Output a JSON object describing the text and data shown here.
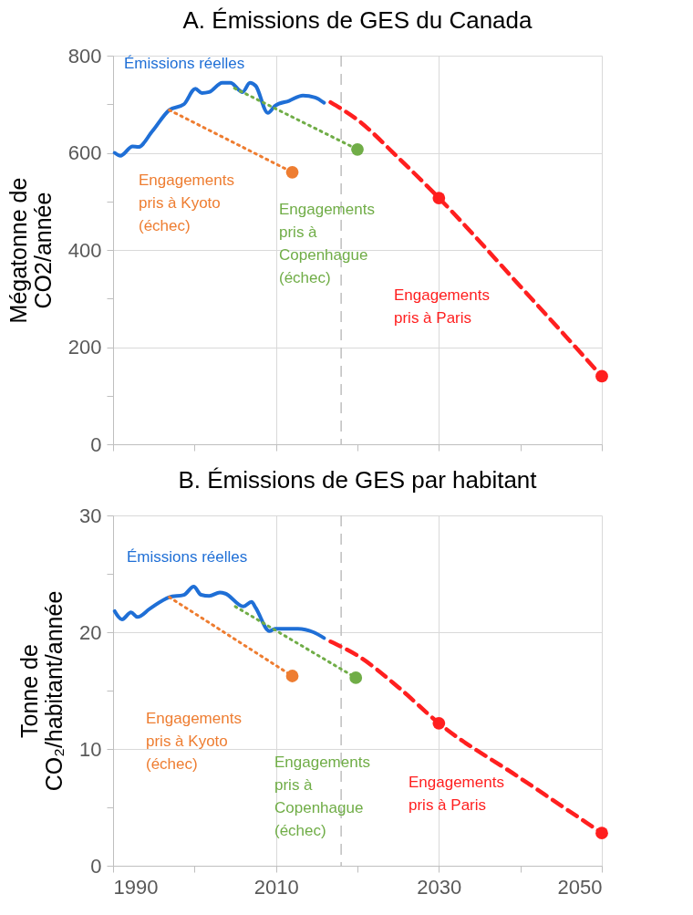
{
  "chart_data": [
    {
      "type": "line",
      "title": "A. Émissions de GES du Canada",
      "ylabel": "Mégatonne de\nCO2/année",
      "xlim": [
        1990,
        2050
      ],
      "xticks": [
        1990,
        {
          "value": 2000,
          "label": null
        },
        2010,
        {
          "value": 2020,
          "label": null
        },
        2030,
        {
          "value": 2040,
          "label": null
        },
        2050
      ],
      "ylim": [
        0,
        800
      ],
      "yticks": [
        0,
        {
          "value": 100,
          "label": null
        },
        200,
        {
          "value": 300,
          "label": null
        },
        400,
        {
          "value": 500,
          "label": null
        },
        600,
        {
          "value": 700,
          "label": null
        },
        800
      ],
      "grid": true,
      "tick_labels": "y",
      "series": [
        {
          "type": "line",
          "color": "#1f6fd6",
          "x": [
            1990.2,
            1990.9,
            1992.4,
            1993.1,
            1994.8,
            1996.9,
            1998.7,
            2000.1,
            2000.9,
            2001.8,
            2003.4,
            2004.4,
            2005.9,
            2006.8,
            2007.5,
            2009.0,
            2009.9,
            2011.6,
            2013.3,
            2014.8,
            2015.9
          ],
          "values": [
            600,
            594,
            613,
            612,
            644,
            688,
            700,
            732,
            723,
            725,
            744,
            744,
            725,
            744,
            738,
            682,
            697,
            707,
            718,
            714,
            703
          ]
        },
        {
          "type": "line",
          "color": "#ff1f1f",
          "line_style": "dashed",
          "x": [
            2016.7,
            2020,
            2025,
            2030,
            2040,
            2050
          ],
          "values": [
            704,
            668,
            590,
            507,
            325,
            140
          ]
        },
        {
          "type": "line",
          "color": "#ee7d31",
          "line_style": "dotted",
          "x": [
            1996.9,
            2012
          ],
          "values": [
            688,
            560
          ]
        },
        {
          "type": "line",
          "color": "#70ad47",
          "line_style": "dotted",
          "x": [
            2004.9,
            2020
          ],
          "values": [
            733,
            607
          ]
        },
        {
          "type": "scatter",
          "color": "#ee7d31",
          "marker": "circle",
          "x": [
            2012
          ],
          "values": [
            560
          ]
        },
        {
          "type": "scatter",
          "color": "#70ad47",
          "marker": "circle",
          "x": [
            2020
          ],
          "values": [
            607
          ]
        },
        {
          "type": "scatter",
          "color": "#ff1f1f",
          "marker": "circle",
          "x": [
            2030,
            2050
          ],
          "values": [
            507,
            140
          ]
        }
      ],
      "ref_lines": [
        {
          "axis": "x",
          "value": 2018,
          "color": "#bfbfbf",
          "line_style": "dashed"
        }
      ],
      "annotations": [
        "Émissions réelles",
        "Engagements\npris à Kyoto\n(échec)",
        "Engagements\npris à\nCopenhague\n(échec)",
        "Engagements\npris à Paris"
      ]
    },
    {
      "type": "line",
      "title": "B. Émissions de GES par habitant",
      "ylabel": "Tonne de\nCO₂/habitant/année",
      "xlim": [
        1990,
        2050
      ],
      "xticks": [
        1990,
        {
          "value": 2000,
          "label": null
        },
        2010,
        {
          "value": 2020,
          "label": null
        },
        2030,
        {
          "value": 2040,
          "label": null
        },
        2050
      ],
      "ylim": [
        0,
        30
      ],
      "yticks": [
        0,
        {
          "value": 5,
          "label": null
        },
        10,
        {
          "value": 15,
          "label": null
        },
        20,
        {
          "value": 25,
          "label": null
        },
        30
      ],
      "grid": true,
      "series": [
        {
          "type": "line",
          "color": "#1f6fd6",
          "x": [
            1990.2,
            1991.1,
            1992.2,
            1993.0,
            1994.5,
            1996.9,
            1998.7,
            1999.9,
            2000.8,
            2001.8,
            2003.1,
            2003.8,
            2006.0,
            2007.0,
            2007.5,
            2009.2,
            2009.9,
            2012.7,
            2014.6,
            2015.9
          ],
          "values": [
            21.8,
            21.1,
            21.7,
            21.3,
            22.0,
            23.0,
            23.2,
            23.9,
            23.2,
            23.1,
            23.4,
            23.3,
            22.2,
            22.6,
            22.1,
            20.1,
            20.3,
            20.3,
            20.0,
            19.5
          ]
        },
        {
          "type": "line",
          "color": "#ff1f1f",
          "line_style": "dashed",
          "x": [
            2016.7,
            2020,
            2025,
            2030,
            2040,
            2050
          ],
          "values": [
            19.2,
            18.0,
            15.3,
            12.2,
            7.5,
            2.8
          ]
        },
        {
          "type": "line",
          "color": "#ee7d31",
          "line_style": "dotted",
          "x": [
            1996.9,
            2012
          ],
          "values": [
            23.0,
            16.25
          ]
        },
        {
          "type": "line",
          "color": "#70ad47",
          "line_style": "dotted",
          "x": [
            2005,
            2019.8
          ],
          "values": [
            22.2,
            16.1
          ]
        },
        {
          "type": "scatter",
          "color": "#ee7d31",
          "marker": "circle",
          "x": [
            2012
          ],
          "values": [
            16.25
          ]
        },
        {
          "type": "scatter",
          "color": "#70ad47",
          "marker": "circle",
          "x": [
            2019.8
          ],
          "values": [
            16.1
          ]
        },
        {
          "type": "scatter",
          "color": "#ff1f1f",
          "marker": "circle",
          "x": [
            2030,
            2050
          ],
          "values": [
            12.2,
            2.8
          ]
        }
      ],
      "ref_lines": [
        {
          "axis": "x",
          "value": 2018,
          "color": "#bfbfbf",
          "line_style": "dashed"
        }
      ],
      "annotations": [
        "Émissions réelles",
        "Engagements\npris à Kyoto\n(échec)",
        "Engagements\npris à\nCopenhague\n(échec)",
        "Engagements\npris à Paris"
      ]
    }
  ]
}
